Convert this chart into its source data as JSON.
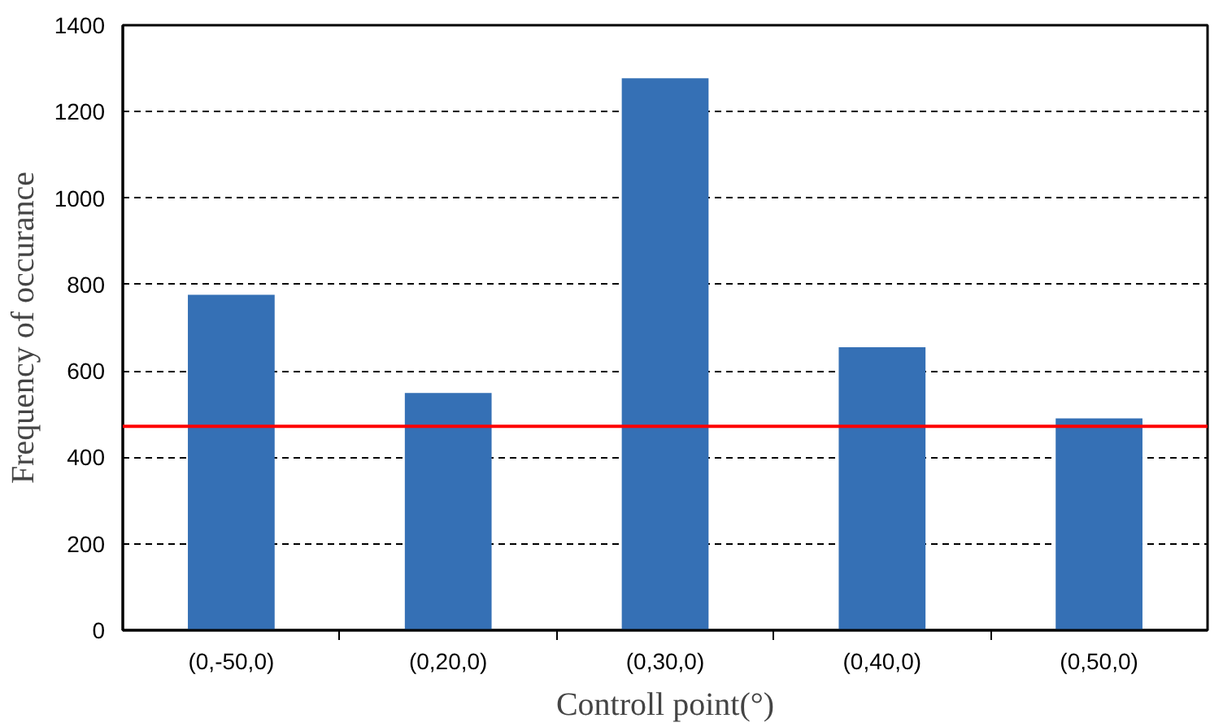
{
  "chart_data": {
    "type": "bar",
    "xlabel": "Controll point(°)",
    "ylabel": "Frequency of occurance",
    "categories": [
      "(0,-50,0)",
      "(0,20,0)",
      "(0,30,0)",
      "(0,40,0)",
      "(0,50,0)"
    ],
    "values": [
      776,
      549,
      1277,
      655,
      490
    ],
    "color": "#3570b5",
    "ylim": [
      0,
      1400
    ],
    "yticks": [
      0,
      200,
      400,
      600,
      800,
      1000,
      1200,
      1400
    ],
    "grid": "y",
    "ref_lines": [
      {
        "axis": "y",
        "value": 472,
        "color": "#ff0000",
        "line_style": "solid"
      }
    ]
  }
}
